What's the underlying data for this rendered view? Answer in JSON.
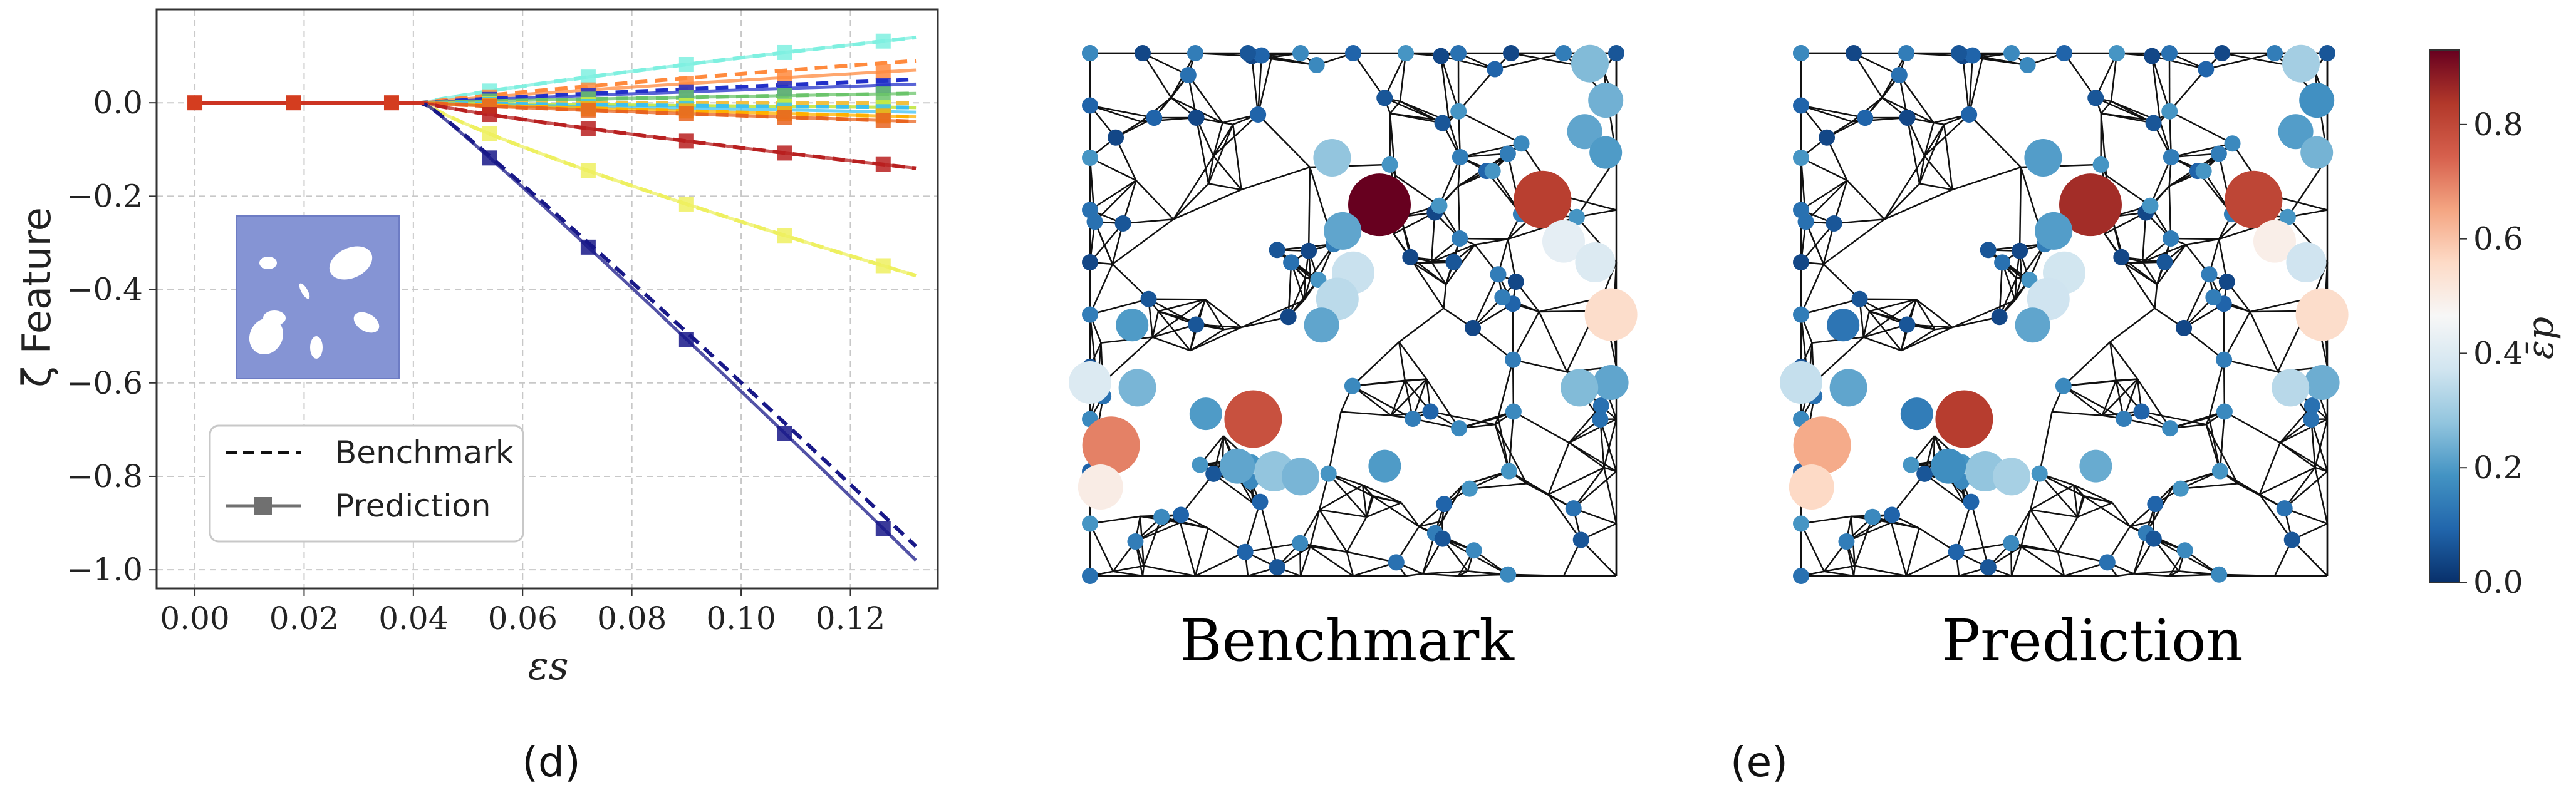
{
  "chart_data": [
    {
      "type": "line",
      "xlabel": "εs",
      "ylabel": "ζ Feature",
      "xlim": [
        -0.007,
        0.136
      ],
      "ylim": [
        -1.04,
        0.2
      ],
      "xticks": [
        "0.00",
        "0.02",
        "0.04",
        "0.06",
        "0.08",
        "0.10",
        "0.12"
      ],
      "yticks": [
        "0.0",
        "−0.2",
        "−0.4",
        "−0.6",
        "−0.8",
        "−1.0"
      ],
      "grid": true,
      "legend_position": "lower-left",
      "legend": [
        {
          "label": "Benchmark",
          "style": "dashed"
        },
        {
          "label": "Prediction",
          "style": "solid-square"
        }
      ],
      "x": [
        0.0,
        0.018,
        0.036,
        0.054,
        0.072,
        0.09,
        0.108,
        0.126
      ],
      "onset_x": 0.042,
      "final_x": 0.132,
      "series": [
        {
          "color": "#7ff0e0",
          "benchmark_final": 0.14,
          "prediction_final": 0.14
        },
        {
          "color": "#ff8a3d",
          "benchmark_final": 0.09,
          "prediction_final": 0.07
        },
        {
          "color": "#2230c8",
          "benchmark_final": 0.05,
          "prediction_final": 0.04
        },
        {
          "color": "#6bc46b",
          "benchmark_final": 0.02,
          "prediction_final": 0.02
        },
        {
          "color": "#f0c040",
          "benchmark_final": 0.0,
          "prediction_final": -0.01
        },
        {
          "color": "#b8f04a",
          "benchmark_final": -0.01,
          "prediction_final": -0.01
        },
        {
          "color": "#3cc0f0",
          "benchmark_final": -0.01,
          "prediction_final": -0.02
        },
        {
          "color": "#ffb000",
          "benchmark_final": -0.03,
          "prediction_final": -0.03
        },
        {
          "color": "#e86420",
          "benchmark_final": -0.04,
          "prediction_final": -0.04
        },
        {
          "color": "#b82020",
          "benchmark_final": -0.14,
          "prediction_final": -0.14
        },
        {
          "color": "#eef060",
          "benchmark_final": -0.37,
          "prediction_final": -0.37
        },
        {
          "color": "#181888",
          "benchmark_final": -0.95,
          "prediction_final": -0.98
        }
      ]
    },
    {
      "type": "graph",
      "panels": [
        "Benchmark",
        "Prediction"
      ],
      "colorbar": {
        "label": "ε̄p",
        "range": [
          0.0,
          0.93
        ],
        "ticks": [
          "0.0",
          "0.2",
          "0.4",
          "0.6",
          "0.8"
        ],
        "colormap": [
          "#08306b",
          "#2166ac",
          "#4393c3",
          "#92c5de",
          "#d1e5f0",
          "#f7f7f7",
          "#fddbc7",
          "#f4a582",
          "#d6604d",
          "#b2382a",
          "#67001f"
        ]
      }
    }
  ],
  "captions": {
    "left": "(d)",
    "right": "(e)"
  }
}
